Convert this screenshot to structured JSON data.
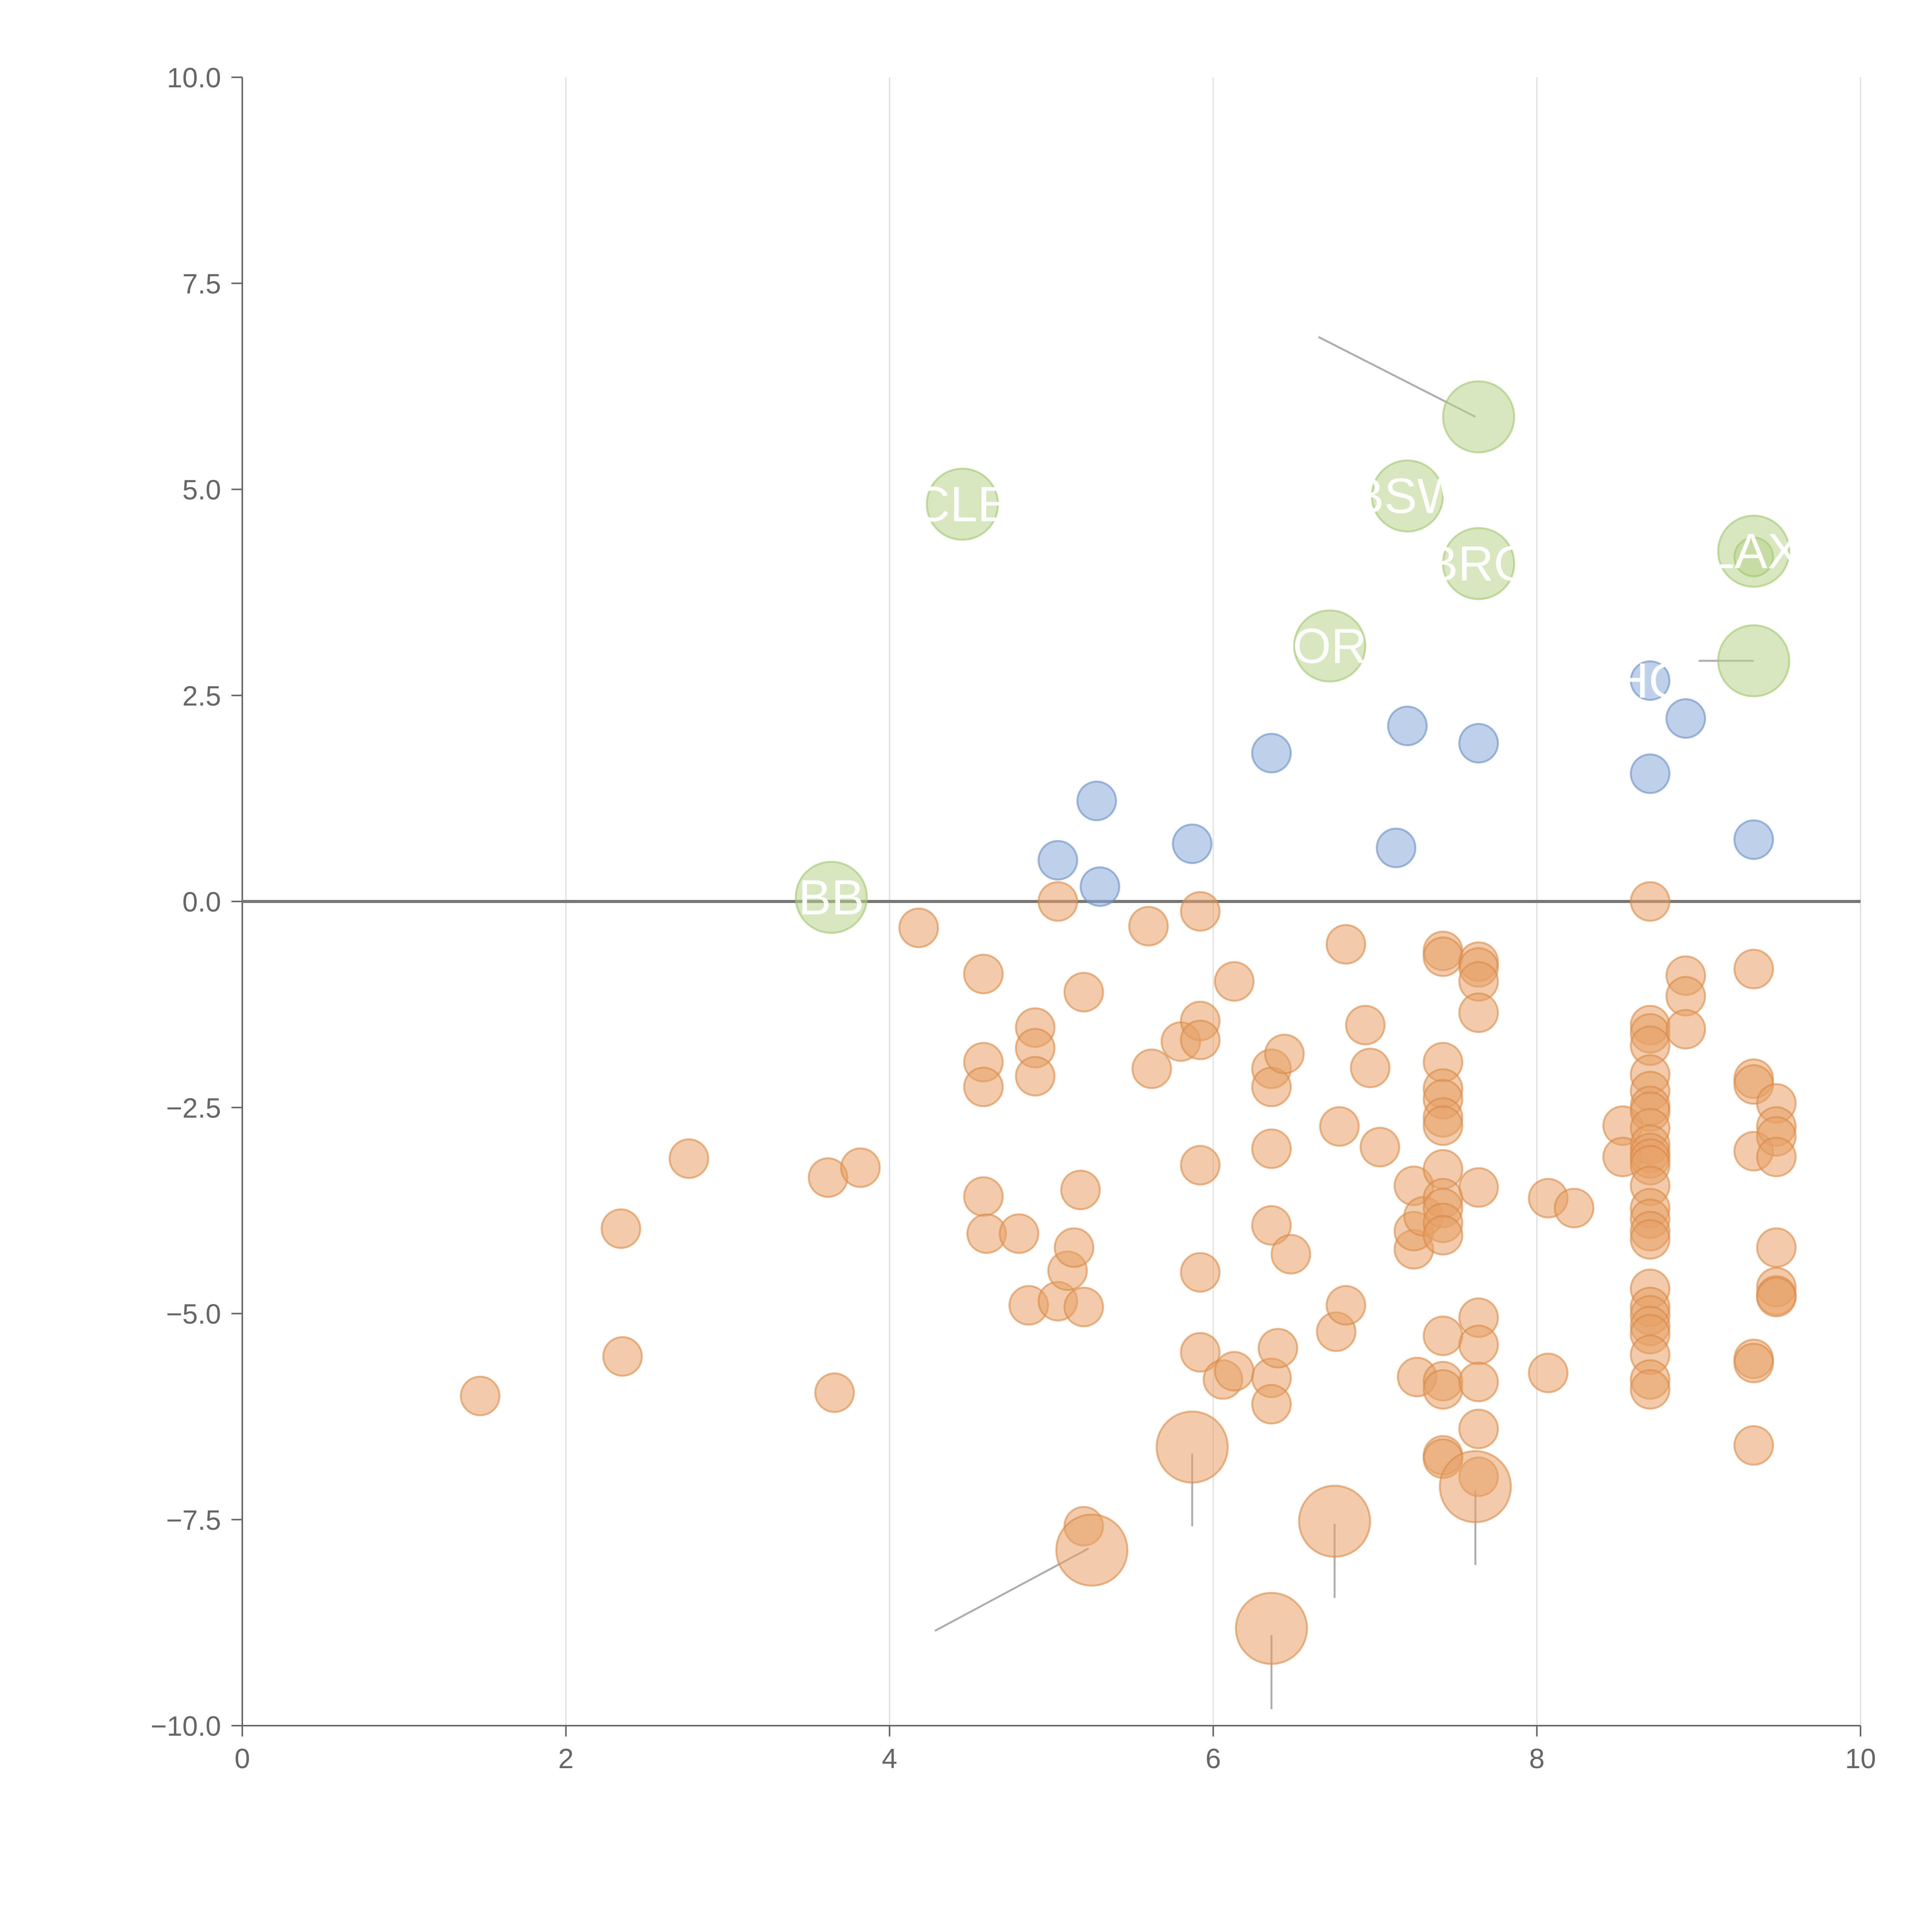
{
  "chart_data": {
    "type": "scatter",
    "title": "",
    "xlabel": "",
    "ylabel": "",
    "xlim": [
      0,
      10
    ],
    "ylim": [
      -10,
      10
    ],
    "x_ticks": [
      0,
      2,
      4,
      6,
      8,
      10
    ],
    "y_ticks": [
      -10.0,
      -7.5,
      -5.0,
      -2.5,
      0.0,
      2.5,
      5.0,
      7.5,
      10.0
    ],
    "x_tick_labels": [
      "0",
      "2",
      "4",
      "6",
      "8",
      "10"
    ],
    "y_tick_labels": [
      "−10.0",
      "−7.5",
      "−5.0",
      "−2.5",
      "0.0",
      "2.5",
      "5.0",
      "7.5",
      "10.0"
    ],
    "grid": "vertical",
    "reference_line": {
      "y": 0
    },
    "colors": {
      "orange": "#e8a066",
      "blue": "#8aa9d8",
      "green": "#b8d48c",
      "orange_edge": "#d98a4a",
      "blue_edge": "#6a8cc4",
      "green_edge": "#a4c46f"
    },
    "series": [
      {
        "name": "orange",
        "color": "#e8a066",
        "size": "small",
        "points": [
          [
            1.47,
            -6.0
          ],
          [
            2.34,
            -3.97
          ],
          [
            2.35,
            -5.52
          ],
          [
            2.76,
            -3.12
          ],
          [
            3.62,
            -3.35
          ],
          [
            3.66,
            -5.96
          ],
          [
            3.82,
            -3.23
          ],
          [
            4.18,
            -0.32
          ],
          [
            4.58,
            -0.88
          ],
          [
            4.58,
            -1.95
          ],
          [
            4.58,
            -2.25
          ],
          [
            4.58,
            -3.58
          ],
          [
            4.6,
            -4.03
          ],
          [
            4.8,
            -4.03
          ],
          [
            4.86,
            -4.9
          ],
          [
            4.9,
            -1.53
          ],
          [
            4.9,
            -1.78
          ],
          [
            4.9,
            -2.12
          ],
          [
            5.04,
            0.0
          ],
          [
            5.04,
            -4.85
          ],
          [
            5.1,
            -4.48
          ],
          [
            5.14,
            -4.2
          ],
          [
            5.18,
            -3.5
          ],
          [
            5.2,
            -1.1
          ],
          [
            5.2,
            -4.92
          ],
          [
            5.2,
            -7.58
          ],
          [
            5.6,
            -0.3
          ],
          [
            5.62,
            -2.03
          ],
          [
            5.8,
            -1.7
          ],
          [
            5.92,
            -0.12
          ],
          [
            5.92,
            -1.45
          ],
          [
            5.92,
            -1.68
          ],
          [
            5.92,
            -3.2
          ],
          [
            5.92,
            -4.5
          ],
          [
            5.92,
            -5.47
          ],
          [
            6.06,
            -5.8
          ],
          [
            6.13,
            -0.97
          ],
          [
            6.13,
            -5.7
          ],
          [
            6.36,
            -2.03
          ],
          [
            6.36,
            -2.25
          ],
          [
            6.36,
            -3.0
          ],
          [
            6.36,
            -3.93
          ],
          [
            6.36,
            -5.78
          ],
          [
            6.36,
            -6.1
          ],
          [
            6.4,
            -5.42
          ],
          [
            6.44,
            -1.85
          ],
          [
            6.48,
            -4.28
          ],
          [
            6.76,
            -5.22
          ],
          [
            6.78,
            -2.73
          ],
          [
            6.82,
            -0.52
          ],
          [
            6.82,
            -4.9
          ],
          [
            6.94,
            -1.5
          ],
          [
            6.97,
            -2.02
          ],
          [
            7.03,
            -2.98
          ],
          [
            7.24,
            -3.45
          ],
          [
            7.24,
            -4.22
          ],
          [
            7.24,
            -4.0
          ],
          [
            7.26,
            -5.77
          ],
          [
            7.3,
            -3.82
          ],
          [
            7.42,
            -0.6
          ],
          [
            7.42,
            -0.67
          ],
          [
            7.42,
            -1.95
          ],
          [
            7.42,
            -2.27
          ],
          [
            7.42,
            -2.4
          ],
          [
            7.42,
            -2.62
          ],
          [
            7.42,
            -2.72
          ],
          [
            7.42,
            -3.25
          ],
          [
            7.42,
            -3.6
          ],
          [
            7.42,
            -3.72
          ],
          [
            7.42,
            -3.9
          ],
          [
            7.42,
            -4.05
          ],
          [
            7.42,
            -5.27
          ],
          [
            7.42,
            -5.82
          ],
          [
            7.42,
            -5.92
          ],
          [
            7.42,
            -6.72
          ],
          [
            7.42,
            -6.76
          ],
          [
            7.64,
            -0.73
          ],
          [
            7.64,
            -0.8
          ],
          [
            7.64,
            -0.97
          ],
          [
            7.64,
            -1.35
          ],
          [
            7.64,
            -3.47
          ],
          [
            7.64,
            -5.05
          ],
          [
            7.64,
            -5.38
          ],
          [
            7.64,
            -5.83
          ],
          [
            7.64,
            -6.4
          ],
          [
            7.64,
            -6.98
          ],
          [
            8.07,
            -3.6
          ],
          [
            8.07,
            -5.72
          ],
          [
            8.23,
            -3.72
          ],
          [
            8.53,
            -2.72
          ],
          [
            8.53,
            -3.1
          ],
          [
            8.7,
            0.0
          ],
          [
            8.7,
            -1.5
          ],
          [
            8.7,
            -1.6
          ],
          [
            8.7,
            -1.75
          ],
          [
            8.7,
            -2.1
          ],
          [
            8.7,
            -2.3
          ],
          [
            8.7,
            -2.48
          ],
          [
            8.7,
            -2.55
          ],
          [
            8.7,
            -2.75
          ],
          [
            8.7,
            -2.95
          ],
          [
            8.7,
            -3.05
          ],
          [
            8.7,
            -3.12
          ],
          [
            8.7,
            -3.2
          ],
          [
            8.7,
            -3.45
          ],
          [
            8.7,
            -3.72
          ],
          [
            8.7,
            -3.85
          ],
          [
            8.7,
            -4.0
          ],
          [
            8.7,
            -4.1
          ],
          [
            8.7,
            -4.7
          ],
          [
            8.7,
            -4.92
          ],
          [
            8.7,
            -5.02
          ],
          [
            8.7,
            -5.15
          ],
          [
            8.7,
            -5.25
          ],
          [
            8.7,
            -5.5
          ],
          [
            8.7,
            -5.8
          ],
          [
            8.7,
            -5.92
          ],
          [
            8.92,
            -0.9
          ],
          [
            8.92,
            -1.15
          ],
          [
            8.92,
            -1.55
          ],
          [
            9.34,
            -0.82
          ],
          [
            9.34,
            -2.15
          ],
          [
            9.34,
            -2.22
          ],
          [
            9.34,
            -3.03
          ],
          [
            9.34,
            -5.55
          ],
          [
            9.34,
            -5.6
          ],
          [
            9.34,
            -6.6
          ],
          [
            9.48,
            -2.45
          ],
          [
            9.48,
            -2.73
          ],
          [
            9.48,
            -2.85
          ],
          [
            9.48,
            -3.1
          ],
          [
            9.48,
            -4.2
          ],
          [
            9.48,
            -4.68
          ],
          [
            9.48,
            -4.78
          ],
          [
            9.48,
            -4.8
          ]
        ]
      },
      {
        "name": "orange-large",
        "color": "#e8a066",
        "size": "large",
        "points": [
          [
            5.25,
            -7.87
          ],
          [
            5.87,
            -6.62
          ],
          [
            6.36,
            -8.82
          ],
          [
            6.75,
            -7.52
          ],
          [
            7.62,
            -7.1
          ]
        ]
      },
      {
        "name": "blue",
        "color": "#8aa9d8",
        "size": "small",
        "points": [
          [
            5.04,
            0.5
          ],
          [
            5.28,
            1.22
          ],
          [
            5.3,
            0.18
          ],
          [
            5.87,
            0.7
          ],
          [
            6.36,
            1.8
          ],
          [
            7.13,
            0.65
          ],
          [
            7.2,
            2.13
          ],
          [
            7.64,
            1.92
          ],
          [
            8.7,
            2.68
          ],
          [
            8.7,
            1.55
          ],
          [
            8.92,
            2.22
          ],
          [
            9.34,
            0.75
          ]
        ]
      },
      {
        "name": "green",
        "color": "#b8d48c",
        "size": "large",
        "points": [
          [
            3.64,
            0.05
          ],
          [
            4.45,
            4.82
          ],
          [
            6.72,
            3.1
          ],
          [
            7.2,
            4.92
          ],
          [
            7.64,
            5.88
          ],
          [
            7.64,
            4.1
          ],
          [
            9.34,
            4.25
          ],
          [
            9.34,
            2.92
          ]
        ]
      },
      {
        "name": "green-small",
        "color": "#b8d48c",
        "size": "small",
        "points": [
          [
            9.34,
            4.18
          ]
        ]
      }
    ],
    "annotations": [
      {
        "text": "BSW",
        "x": 7.2,
        "y": 4.92
      },
      {
        "text": "BRO",
        "x": 7.64,
        "y": 4.1
      },
      {
        "text": "LAX",
        "x": 9.34,
        "y": 4.25
      },
      {
        "text": "OR",
        "x": 6.72,
        "y": 3.1
      },
      {
        "text": "HO",
        "x": 8.7,
        "y": 2.68
      },
      {
        "text": "BB",
        "x": 3.64,
        "y": 0.05
      },
      {
        "text": "CLE",
        "x": 4.45,
        "y": 4.82
      }
    ],
    "leader_lines": [
      {
        "from": [
          6.65,
          6.85
        ],
        "to": [
          7.62,
          5.88
        ]
      },
      {
        "from": [
          9.34,
          2.92
        ],
        "to": [
          9.0,
          2.92
        ]
      },
      {
        "from": [
          5.23,
          -7.85
        ],
        "to": [
          4.28,
          -8.85
        ]
      },
      {
        "from": [
          5.87,
          -6.7
        ],
        "to": [
          5.87,
          -7.58
        ]
      },
      {
        "from": [
          6.36,
          -8.9
        ],
        "to": [
          6.36,
          -9.8
        ]
      },
      {
        "from": [
          6.75,
          -7.55
        ],
        "to": [
          6.75,
          -8.45
        ]
      },
      {
        "from": [
          7.62,
          -7.15
        ],
        "to": [
          7.62,
          -8.05
        ]
      }
    ]
  }
}
